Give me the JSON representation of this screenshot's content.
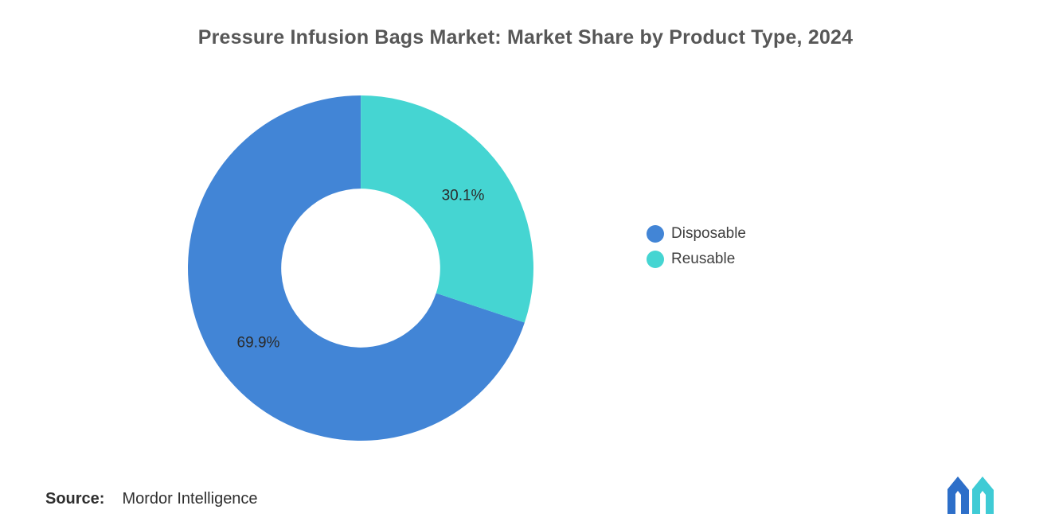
{
  "chart_data": {
    "type": "donut",
    "title": "Pressure Infusion Bags Market: Market Share by Product Type, 2024",
    "categories": [
      "Disposable",
      "Reusable"
    ],
    "series": [
      {
        "name": "Disposable",
        "value": 69.9,
        "label": "69.9%",
        "color": "#4285D6"
      },
      {
        "name": "Reusable",
        "value": 30.1,
        "label": "30.1%",
        "color": "#45D5D2"
      }
    ],
    "start_angle_deg": 108.4,
    "inner_radius_ratio": 0.46,
    "legend_position": "right",
    "grid": false
  },
  "legend": {
    "items": [
      {
        "label": "Disposable"
      },
      {
        "label": "Reusable"
      }
    ]
  },
  "source": {
    "label": "Source:",
    "name": "Mordor Intelligence"
  },
  "brand": {
    "logo_blue": "#2D6FC9",
    "logo_teal": "#3FCBD5"
  }
}
